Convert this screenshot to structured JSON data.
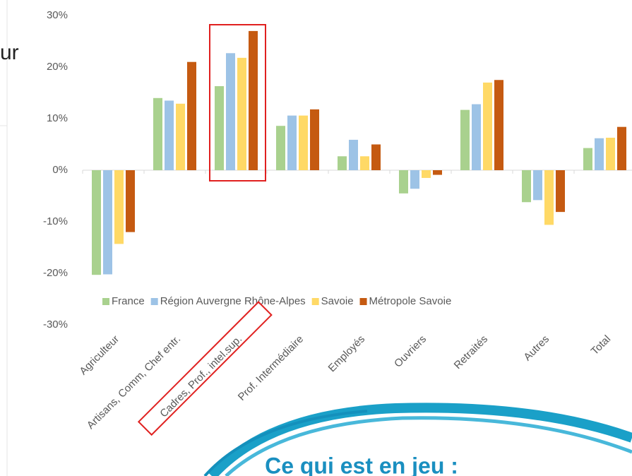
{
  "left_text": "ur",
  "banner_text": "Ce qui est en jeu :",
  "chart_data": {
    "type": "bar",
    "categories": [
      "Agriculteur",
      "Artisans, Comm, Chef entr.",
      "Cadres, Prof., intel.sup.",
      "Prof. Intermédiaire",
      "Employés",
      "Ouvriers",
      "Retraités",
      "Autres",
      "Total"
    ],
    "series": [
      {
        "name": "France",
        "color": "#a9d18e",
        "values": [
          -20.3,
          14,
          16.3,
          8.6,
          2.7,
          -4.5,
          11.7,
          -6.2,
          4.3
        ]
      },
      {
        "name": "Région Auvergne Rhône-Alpes",
        "color": "#9dc3e6",
        "values": [
          -20.2,
          13.5,
          22.7,
          10.6,
          5.9,
          -3.6,
          12.8,
          -5.8,
          6.2
        ]
      },
      {
        "name": "Savoie",
        "color": "#ffd966",
        "values": [
          -14.3,
          12.9,
          21.8,
          10.6,
          2.7,
          -1.5,
          17,
          -10.6,
          6.3
        ]
      },
      {
        "name": "Métropole Savoie",
        "color": "#c55a11",
        "values": [
          -12,
          21,
          27,
          11.8,
          5,
          -0.9,
          17.5,
          -8.1,
          8.4
        ]
      }
    ],
    "ylim": [
      -30,
      30
    ],
    "yticks": [
      {
        "value": -30,
        "label": "-30%"
      },
      {
        "value": -20,
        "label": "-20%"
      },
      {
        "value": -10,
        "label": "-10%"
      },
      {
        "value": 0,
        "label": "0%"
      },
      {
        "value": 10,
        "label": "10%"
      },
      {
        "value": 20,
        "label": "20%"
      },
      {
        "value": 30,
        "label": "30%"
      }
    ],
    "grid": false,
    "legend": "bottom"
  }
}
